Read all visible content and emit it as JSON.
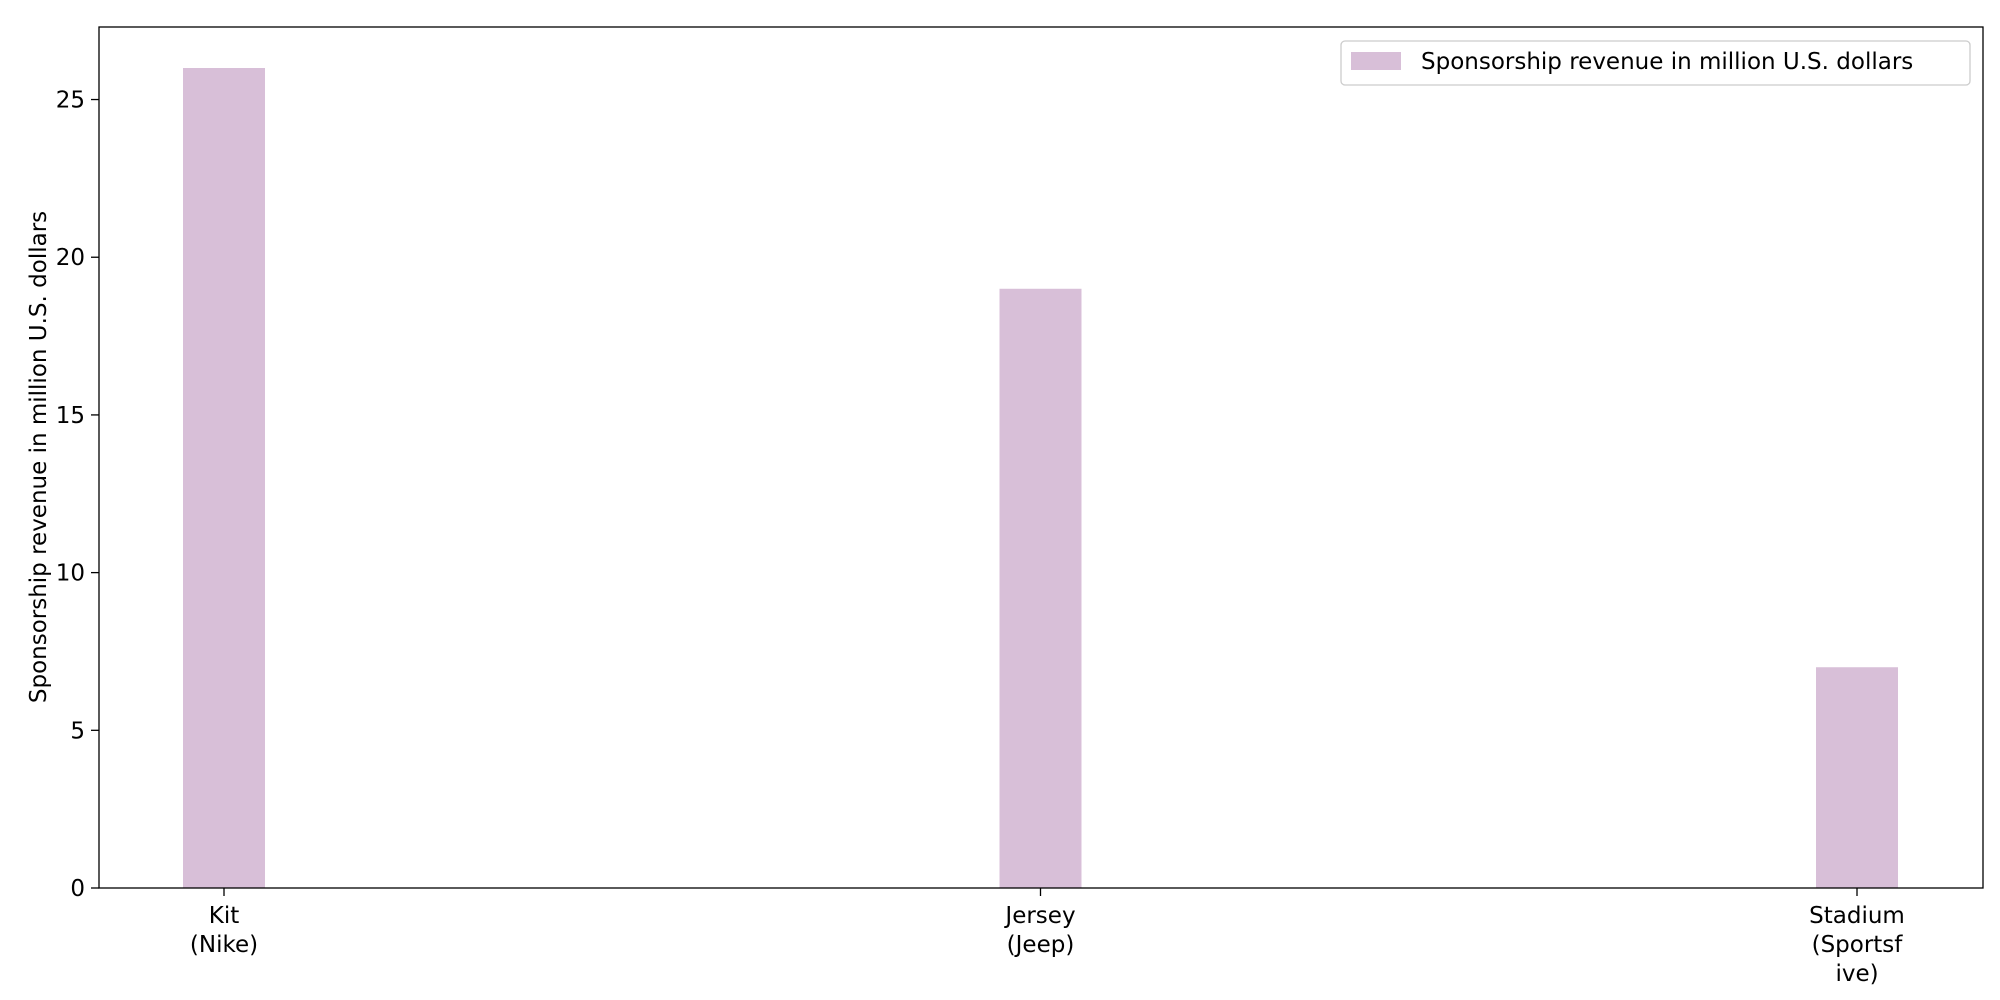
{
  "chart_data": {
    "type": "bar",
    "categories": [
      "Kit\n(Nike)",
      "Jersey\n(Jeep)",
      "Stadium\n(Sportsf\nive)"
    ],
    "series": [
      {
        "name": "Sponsorship revenue in million U.S. dollars",
        "values": [
          26,
          19,
          7
        ],
        "color": "#d8bfd8"
      }
    ],
    "ylabel": "Sponsorship revenue in million U.S. dollars",
    "xlabel": "",
    "ylim": [
      0,
      27.3
    ],
    "yticks": [
      0,
      5,
      10,
      15,
      20,
      25
    ],
    "grid": false,
    "legend_position": "top-right"
  }
}
